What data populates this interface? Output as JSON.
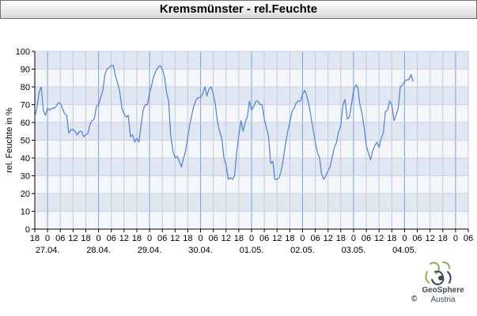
{
  "header": {
    "title": "Kremsmünster - rel.Feuchte"
  },
  "chart_data": {
    "type": "line",
    "ylabel": "rel. Feuchte in %",
    "xlabel": "",
    "ylim": [
      0,
      100
    ],
    "yticks": [
      0,
      10,
      20,
      30,
      40,
      50,
      60,
      70,
      80,
      90,
      100
    ],
    "xlim_hours": [
      -6,
      198
    ],
    "x_unit": "hours since 27.04. 00:00",
    "hour_ticks": [
      {
        "h": -6,
        "label": "18"
      },
      {
        "h": 0,
        "label": "0"
      },
      {
        "h": 6,
        "label": "06"
      },
      {
        "h": 12,
        "label": "12"
      },
      {
        "h": 18,
        "label": "18"
      },
      {
        "h": 24,
        "label": "0"
      },
      {
        "h": 30,
        "label": "06"
      },
      {
        "h": 36,
        "label": "12"
      },
      {
        "h": 42,
        "label": "18"
      },
      {
        "h": 48,
        "label": "0"
      },
      {
        "h": 54,
        "label": "06"
      },
      {
        "h": 60,
        "label": "12"
      },
      {
        "h": 66,
        "label": "18"
      },
      {
        "h": 72,
        "label": "0"
      },
      {
        "h": 78,
        "label": "06"
      },
      {
        "h": 84,
        "label": "12"
      },
      {
        "h": 90,
        "label": "18"
      },
      {
        "h": 96,
        "label": "0"
      },
      {
        "h": 102,
        "label": "06"
      },
      {
        "h": 108,
        "label": "12"
      },
      {
        "h": 114,
        "label": "18"
      },
      {
        "h": 120,
        "label": "0"
      },
      {
        "h": 126,
        "label": "06"
      },
      {
        "h": 132,
        "label": "12"
      },
      {
        "h": 138,
        "label": "18"
      },
      {
        "h": 144,
        "label": "0"
      },
      {
        "h": 150,
        "label": "06"
      },
      {
        "h": 156,
        "label": "12"
      },
      {
        "h": 162,
        "label": "18"
      },
      {
        "h": 168,
        "label": "0"
      },
      {
        "h": 174,
        "label": "06"
      },
      {
        "h": 180,
        "label": "12"
      },
      {
        "h": 186,
        "label": "18"
      },
      {
        "h": 192,
        "label": "0"
      },
      {
        "h": 198,
        "label": "06"
      }
    ],
    "date_labels": [
      {
        "h": 0,
        "label": "27.04."
      },
      {
        "h": 24,
        "label": "28.04."
      },
      {
        "h": 48,
        "label": "29.04."
      },
      {
        "h": 72,
        "label": "30.04."
      },
      {
        "h": 96,
        "label": "01.05."
      },
      {
        "h": 120,
        "label": "02.05."
      },
      {
        "h": 144,
        "label": "03.05."
      },
      {
        "h": 168,
        "label": "04.05."
      }
    ],
    "series": [
      {
        "color": "#4f7fd6",
        "points": [
          [
            -6,
            63
          ],
          [
            -5,
            68
          ],
          [
            -4,
            77
          ],
          [
            -3,
            80
          ],
          [
            -2,
            67
          ],
          [
            -1,
            64
          ],
          [
            0,
            68
          ],
          [
            1,
            67
          ],
          [
            2,
            68
          ],
          [
            3,
            68
          ],
          [
            4,
            69
          ],
          [
            5,
            71
          ],
          [
            6,
            71
          ],
          [
            7,
            68
          ],
          [
            8,
            65
          ],
          [
            9,
            64
          ],
          [
            10,
            54
          ],
          [
            11,
            56
          ],
          [
            12,
            56
          ],
          [
            13,
            55
          ],
          [
            14,
            53
          ],
          [
            15,
            55
          ],
          [
            16,
            55
          ],
          [
            17,
            52
          ],
          [
            18,
            53
          ],
          [
            19,
            54
          ],
          [
            20,
            59
          ],
          [
            21,
            61
          ],
          [
            22,
            62
          ],
          [
            23,
            69
          ],
          [
            24,
            70
          ],
          [
            25,
            74
          ],
          [
            26,
            78
          ],
          [
            27,
            87
          ],
          [
            28,
            90
          ],
          [
            29,
            91
          ],
          [
            30,
            92
          ],
          [
            31,
            92
          ],
          [
            32,
            86
          ],
          [
            33,
            82
          ],
          [
            34,
            77
          ],
          [
            35,
            68
          ],
          [
            36,
            65
          ],
          [
            37,
            63
          ],
          [
            38,
            64
          ],
          [
            39,
            52
          ],
          [
            40,
            53
          ],
          [
            41,
            49
          ],
          [
            42,
            51
          ],
          [
            43,
            49
          ],
          [
            44,
            58
          ],
          [
            45,
            67
          ],
          [
            46,
            70
          ],
          [
            47,
            70
          ],
          [
            48,
            77
          ],
          [
            49,
            81
          ],
          [
            50,
            86
          ],
          [
            51,
            89
          ],
          [
            52,
            91
          ],
          [
            53,
            92
          ],
          [
            54,
            90
          ],
          [
            55,
            86
          ],
          [
            56,
            77
          ],
          [
            57,
            72
          ],
          [
            58,
            52
          ],
          [
            59,
            44
          ],
          [
            60,
            40
          ],
          [
            61,
            41
          ],
          [
            62,
            38
          ],
          [
            63,
            35
          ],
          [
            64,
            40
          ],
          [
            65,
            44
          ],
          [
            66,
            52
          ],
          [
            67,
            59
          ],
          [
            68,
            65
          ],
          [
            69,
            70
          ],
          [
            70,
            73
          ],
          [
            71,
            74
          ],
          [
            72,
            74
          ],
          [
            73,
            76
          ],
          [
            74,
            80
          ],
          [
            75,
            75
          ],
          [
            76,
            79
          ],
          [
            77,
            80
          ],
          [
            78,
            76
          ],
          [
            79,
            70
          ],
          [
            80,
            60
          ],
          [
            81,
            55
          ],
          [
            82,
            51
          ],
          [
            83,
            40
          ],
          [
            84,
            36
          ],
          [
            85,
            28
          ],
          [
            86,
            29
          ],
          [
            87,
            28
          ],
          [
            88,
            30
          ],
          [
            89,
            43
          ],
          [
            90,
            53
          ],
          [
            91,
            61
          ],
          [
            92,
            55
          ],
          [
            93,
            60
          ],
          [
            94,
            63
          ],
          [
            95,
            72
          ],
          [
            96,
            67
          ],
          [
            97,
            69
          ],
          [
            98,
            72
          ],
          [
            99,
            72
          ],
          [
            100,
            70
          ],
          [
            101,
            70
          ],
          [
            102,
            62
          ],
          [
            103,
            57
          ],
          [
            104,
            52
          ],
          [
            105,
            37
          ],
          [
            106,
            38
          ],
          [
            107,
            28
          ],
          [
            108,
            28
          ],
          [
            109,
            29
          ],
          [
            110,
            33
          ],
          [
            111,
            40
          ],
          [
            112,
            48
          ],
          [
            113,
            55
          ],
          [
            114,
            60
          ],
          [
            115,
            66
          ],
          [
            116,
            68
          ],
          [
            117,
            71
          ],
          [
            118,
            72
          ],
          [
            119,
            72
          ],
          [
            120,
            76
          ],
          [
            121,
            78
          ],
          [
            122,
            75
          ],
          [
            123,
            70
          ],
          [
            124,
            63
          ],
          [
            125,
            56
          ],
          [
            126,
            49
          ],
          [
            127,
            43
          ],
          [
            128,
            40
          ],
          [
            129,
            31
          ],
          [
            130,
            28
          ],
          [
            131,
            30
          ],
          [
            132,
            33
          ],
          [
            133,
            35
          ],
          [
            134,
            41
          ],
          [
            135,
            46
          ],
          [
            136,
            49
          ],
          [
            137,
            55
          ],
          [
            138,
            58
          ],
          [
            139,
            70
          ],
          [
            140,
            73
          ],
          [
            141,
            62
          ],
          [
            142,
            63
          ],
          [
            143,
            70
          ],
          [
            144,
            78
          ],
          [
            145,
            81
          ],
          [
            146,
            80
          ],
          [
            147,
            70
          ],
          [
            148,
            65
          ],
          [
            149,
            57
          ],
          [
            150,
            47
          ],
          [
            151,
            43
          ],
          [
            152,
            39
          ],
          [
            153,
            44
          ],
          [
            154,
            47
          ],
          [
            155,
            49
          ],
          [
            156,
            46
          ],
          [
            157,
            51
          ],
          [
            158,
            54
          ],
          [
            159,
            66
          ],
          [
            160,
            67
          ],
          [
            161,
            72
          ],
          [
            162,
            70
          ],
          [
            163,
            61
          ],
          [
            164,
            64
          ],
          [
            165,
            68
          ],
          [
            166,
            80
          ],
          [
            167,
            81
          ],
          [
            168,
            83
          ],
          [
            169,
            84
          ],
          [
            170,
            84
          ],
          [
            171,
            87
          ],
          [
            172,
            83
          ]
        ]
      }
    ]
  },
  "branding": {
    "logo_icon": "geosphere-logo-icon",
    "name": "GeoSphere",
    "subtitle": "Austria",
    "copyright": "©"
  }
}
